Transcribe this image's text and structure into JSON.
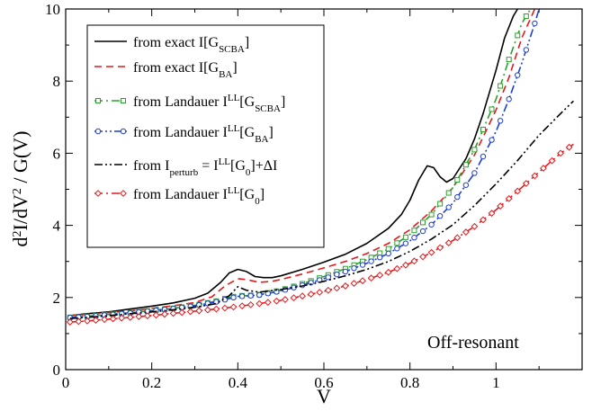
{
  "chart_data": {
    "type": "line",
    "xlabel": "V",
    "ylabel": "d2I/dV2 / G(V)",
    "xlim": [
      0,
      1.2
    ],
    "ylim": [
      0,
      10
    ],
    "x_ticks": [
      "0",
      "0.2",
      "0.4",
      "0.6",
      "0.8",
      "1"
    ],
    "y_ticks": [
      "0",
      "2",
      "4",
      "6",
      "8",
      "10"
    ],
    "grid": false,
    "legend_position": "top-left",
    "annotation": "Off-resonant",
    "series": [
      {
        "name": "from exact I[G_SCBA]",
        "color": "#000000",
        "dash": "solid",
        "marker": "none",
        "x": [
          0.01,
          0.05,
          0.1,
          0.15,
          0.2,
          0.25,
          0.3,
          0.33,
          0.36,
          0.38,
          0.4,
          0.42,
          0.44,
          0.46,
          0.48,
          0.5,
          0.55,
          0.6,
          0.65,
          0.7,
          0.75,
          0.78,
          0.8,
          0.82,
          0.84,
          0.855,
          0.87,
          0.885,
          0.9,
          0.93,
          0.95,
          0.97,
          1.0,
          1.02,
          1.04,
          1.05
        ],
        "y": [
          1.5,
          1.55,
          1.6,
          1.68,
          1.76,
          1.85,
          1.98,
          2.12,
          2.42,
          2.68,
          2.78,
          2.72,
          2.58,
          2.55,
          2.55,
          2.6,
          2.78,
          2.98,
          3.2,
          3.5,
          3.92,
          4.3,
          4.7,
          5.25,
          5.65,
          5.6,
          5.35,
          5.2,
          5.3,
          5.85,
          6.4,
          7.1,
          8.3,
          9.2,
          9.8,
          10.0
        ]
      },
      {
        "name": "from exact I[G_BA]",
        "color": "#e41a1c",
        "dash": "dashed",
        "marker": "none",
        "x": [
          0.01,
          0.05,
          0.1,
          0.15,
          0.2,
          0.25,
          0.3,
          0.34,
          0.37,
          0.4,
          0.42,
          0.45,
          0.48,
          0.5,
          0.55,
          0.6,
          0.65,
          0.7,
          0.75,
          0.8,
          0.85,
          0.9,
          0.95,
          1.0,
          1.03,
          1.06,
          1.09
        ],
        "y": [
          1.5,
          1.53,
          1.58,
          1.63,
          1.7,
          1.77,
          1.86,
          2.02,
          2.32,
          2.52,
          2.5,
          2.42,
          2.45,
          2.5,
          2.65,
          2.82,
          3.0,
          3.22,
          3.5,
          3.88,
          4.4,
          5.05,
          5.95,
          7.2,
          8.1,
          9.2,
          10.0
        ]
      },
      {
        "name": "from Landauer I^LL[G_SCBA]",
        "color": "#2ca02c",
        "dash": "dashdot",
        "marker": "square",
        "x": [
          0.01,
          0.05,
          0.1,
          0.15,
          0.2,
          0.25,
          0.3,
          0.35,
          0.38,
          0.4,
          0.42,
          0.45,
          0.5,
          0.55,
          0.6,
          0.65,
          0.7,
          0.75,
          0.8,
          0.85,
          0.9,
          0.95,
          1.0,
          1.03,
          1.06,
          1.08
        ],
        "y": [
          1.45,
          1.48,
          1.53,
          1.58,
          1.64,
          1.7,
          1.78,
          1.9,
          2.0,
          2.05,
          2.05,
          2.08,
          2.2,
          2.38,
          2.58,
          2.8,
          3.05,
          3.35,
          3.75,
          4.3,
          5.05,
          6.1,
          7.5,
          8.6,
          9.6,
          10.0
        ]
      },
      {
        "name": "from Landauer I^LL[G_BA]",
        "color": "#1f3fd1",
        "dash": "dashdotdot",
        "marker": "circle",
        "x": [
          0.01,
          0.05,
          0.1,
          0.15,
          0.2,
          0.25,
          0.3,
          0.35,
          0.38,
          0.4,
          0.42,
          0.45,
          0.5,
          0.55,
          0.6,
          0.65,
          0.7,
          0.75,
          0.8,
          0.85,
          0.9,
          0.95,
          1.0,
          1.03,
          1.06,
          1.09,
          1.1
        ],
        "y": [
          1.44,
          1.47,
          1.52,
          1.57,
          1.63,
          1.69,
          1.77,
          1.88,
          1.97,
          2.03,
          2.04,
          2.07,
          2.18,
          2.34,
          2.52,
          2.72,
          2.95,
          3.22,
          3.57,
          4.02,
          4.62,
          5.45,
          6.6,
          7.5,
          8.5,
          9.6,
          10.0
        ]
      },
      {
        "name": "from I_perturb = I^LL[G_0]+ΔI",
        "color": "#000000",
        "dash": "dashdotdot",
        "marker": "none",
        "x": [
          0.01,
          0.05,
          0.1,
          0.15,
          0.2,
          0.25,
          0.3,
          0.35,
          0.38,
          0.4,
          0.42,
          0.45,
          0.5,
          0.55,
          0.6,
          0.65,
          0.7,
          0.75,
          0.8,
          0.85,
          0.9,
          0.95,
          1.0,
          1.05,
          1.1,
          1.15,
          1.18
        ],
        "y": [
          1.42,
          1.45,
          1.5,
          1.55,
          1.6,
          1.66,
          1.73,
          1.83,
          2.05,
          2.3,
          2.2,
          2.15,
          2.22,
          2.32,
          2.45,
          2.6,
          2.78,
          3.0,
          3.28,
          3.62,
          4.02,
          4.55,
          5.15,
          5.8,
          6.5,
          7.1,
          7.45
        ]
      },
      {
        "name": "from Landauer I^LL[G_0]",
        "color": "#e41a1c",
        "dash": "dashdot",
        "marker": "diamond",
        "x": [
          0.01,
          0.05,
          0.1,
          0.15,
          0.2,
          0.25,
          0.3,
          0.35,
          0.4,
          0.45,
          0.5,
          0.55,
          0.6,
          0.65,
          0.7,
          0.75,
          0.8,
          0.85,
          0.9,
          0.95,
          1.0,
          1.05,
          1.1,
          1.15,
          1.18
        ],
        "y": [
          1.32,
          1.35,
          1.4,
          1.45,
          1.5,
          1.56,
          1.62,
          1.68,
          1.75,
          1.83,
          1.92,
          2.04,
          2.17,
          2.32,
          2.5,
          2.7,
          2.95,
          3.25,
          3.58,
          3.97,
          4.43,
          4.95,
          5.48,
          6.0,
          6.25
        ]
      }
    ]
  }
}
